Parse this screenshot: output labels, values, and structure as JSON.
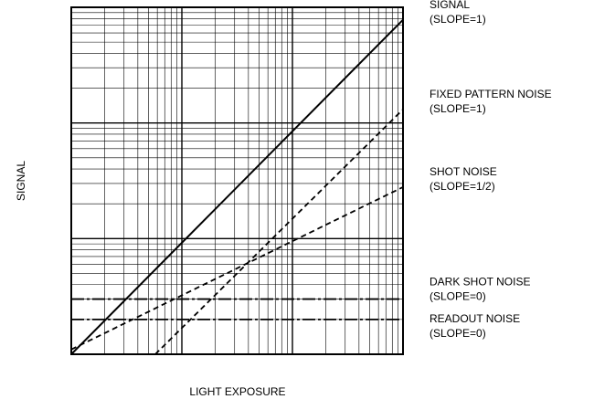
{
  "chart_data": {
    "type": "line",
    "log_x": true,
    "log_y": true,
    "grid": true,
    "xlabel": "LIGHT EXPOSURE",
    "ylabel": "SIGNAL",
    "xlim": [
      1,
      1000
    ],
    "ylim": [
      1,
      1000
    ],
    "xticks": [
      1,
      10,
      100,
      1000
    ],
    "yticks": [
      1,
      10,
      100,
      1000
    ],
    "xminorticks": [
      2,
      3,
      4,
      5,
      6,
      7,
      8,
      9,
      20,
      30,
      40,
      50,
      60,
      70,
      80,
      90,
      200,
      300,
      400,
      500,
      600,
      700,
      800,
      900
    ],
    "yminorticks": [
      2,
      3,
      4,
      5,
      6,
      7,
      8,
      9,
      20,
      30,
      40,
      50,
      60,
      70,
      80,
      90,
      200,
      300,
      400,
      500,
      600,
      700,
      800,
      900
    ],
    "series": [
      {
        "name": "SIGNAL",
        "slope_label": "(SLOPE=1)",
        "color": "#000000",
        "dash": "solid",
        "x": [
          1,
          1000
        ],
        "values": [
          1,
          780
        ]
      },
      {
        "name": "FIXED PATTERN NOISE",
        "slope_label": "(SLOPE=1)",
        "color": "#000000",
        "dash": "dashed",
        "x": [
          5.75,
          1000
        ],
        "values": [
          1,
          131
        ]
      },
      {
        "name": "SHOT NOISE",
        "slope_label": "(SLOPE=1/2)",
        "color": "#000000",
        "dash": "dashed",
        "x": [
          1,
          1000
        ],
        "values": [
          1.1,
          27.9
        ]
      },
      {
        "name": "DARK SHOT NOISE",
        "slope_label": "(SLOPE=0)",
        "color": "#000000",
        "dash": "dashdot",
        "x": [
          1,
          1000
        ],
        "values": [
          3,
          3
        ]
      },
      {
        "name": "READOUT NOISE",
        "slope_label": "(SLOPE=0)",
        "color": "#000000",
        "dash": "dashdot",
        "x": [
          1,
          1000
        ],
        "values": [
          2,
          2
        ]
      }
    ]
  }
}
